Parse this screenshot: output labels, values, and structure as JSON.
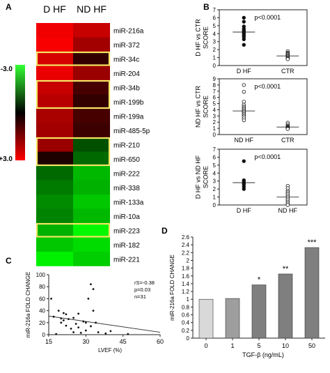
{
  "panels": {
    "A": "A",
    "B": "B",
    "C": "C",
    "D": "D"
  },
  "colors": {
    "green": "#33ff33",
    "black": "#000000",
    "red": "#ff0000",
    "highlight": "#f5e663",
    "bar_light": "#d9d9d9",
    "bar_mid": "#9e9e9e",
    "bar_dark": "#7f7f7f"
  },
  "chart_data": [
    {
      "panel": "A",
      "type": "heatmap",
      "columns": [
        "D HF",
        "ND HF"
      ],
      "rows": [
        "miR-216a",
        "miR-372",
        "miR-34c",
        "miR-204",
        "miR-34b",
        "miR-199b",
        "miR-199a",
        "miR-485-5p",
        "miR-210",
        "miR-650",
        "miR-222",
        "miR-338",
        "miR-133a",
        "miR-10a",
        "miR-223",
        "miR-182",
        "miR-221"
      ],
      "values": [
        [
          2.8,
          2.2
        ],
        [
          2.9,
          1.7
        ],
        [
          2.4,
          0.4
        ],
        [
          2.7,
          1.6
        ],
        [
          2.2,
          0.6
        ],
        [
          2.0,
          0.4
        ],
        [
          1.8,
          0.6
        ],
        [
          1.7,
          0.5
        ],
        [
          1.6,
          -0.7
        ],
        [
          0.2,
          -1.0
        ],
        [
          -1.0,
          -2.0
        ],
        [
          -1.2,
          -1.9
        ],
        [
          -1.4,
          -2.2
        ],
        [
          -1.3,
          -2.0
        ],
        [
          -1.9,
          -2.9
        ],
        [
          -2.2,
          -2.5
        ],
        [
          -2.8,
          -2.3
        ]
      ],
      "colorbar": {
        "min_label": "-3.0",
        "max_label": "+3.0",
        "min": -3.0,
        "max": 3.0
      },
      "highlighted_groups": [
        [
          "miR-34c"
        ],
        [
          "miR-34b",
          "miR-199b"
        ],
        [
          "miR-210",
          "miR-650"
        ],
        [
          "miR-223"
        ]
      ]
    },
    {
      "panel": "B1",
      "type": "scatter",
      "ylabel": "D HF vs CTR\nSCORE",
      "ylim": [
        0,
        7
      ],
      "yticks": [
        0,
        1,
        2,
        3,
        4,
        5,
        6,
        7
      ],
      "categories": [
        "D HF",
        "CTR"
      ],
      "annotation": "p<0.0001",
      "groups": [
        {
          "category": "D HF",
          "filled": true,
          "median": 4.2,
          "values": [
            6.0,
            5.5,
            4.9,
            4.6,
            4.4,
            4.3,
            4.1,
            4.0,
            3.8,
            3.6,
            3.3,
            2.6
          ]
        },
        {
          "category": "CTR",
          "filled": false,
          "median": 1.2,
          "values": [
            1.8,
            1.6,
            1.5,
            1.4,
            1.3,
            1.2,
            1.1,
            1.0,
            0.9,
            0.8
          ]
        }
      ]
    },
    {
      "panel": "B2",
      "type": "scatter",
      "ylabel": "ND HF vs CTR\nSCORE",
      "ylim": [
        0,
        9
      ],
      "yticks": [
        0,
        1,
        2,
        3,
        4,
        5,
        6,
        7,
        8,
        9
      ],
      "categories": [
        "ND HF",
        "CTR"
      ],
      "annotation": "p<0.0001",
      "groups": [
        {
          "category": "ND HF",
          "filled": false,
          "median": 3.8,
          "values": [
            8.0,
            6.9,
            5.3,
            4.8,
            4.5,
            4.3,
            4.1,
            3.9,
            3.7,
            3.5,
            3.3,
            3.1,
            2.9,
            2.6,
            2.3
          ]
        },
        {
          "category": "CTR",
          "filled": false,
          "median": 1.2,
          "values": [
            1.9,
            1.6,
            1.4,
            1.3,
            1.2,
            1.1,
            1.0,
            0.9
          ]
        }
      ]
    },
    {
      "panel": "B3",
      "type": "scatter",
      "ylabel": "D HF vs ND HF\nSCORE",
      "ylim": [
        0,
        7
      ],
      "yticks": [
        0,
        1,
        2,
        3,
        4,
        5,
        6,
        7
      ],
      "categories": [
        "D HF",
        "ND HF"
      ],
      "annotation": "p<0.0001",
      "groups": [
        {
          "category": "D HF",
          "filled": true,
          "median": 2.8,
          "values": [
            5.5,
            3.1,
            2.9,
            2.7,
            2.6,
            2.3,
            2.0
          ]
        },
        {
          "category": "ND HF",
          "filled": false,
          "median": 1.0,
          "values": [
            2.4,
            2.1,
            1.8,
            1.6,
            1.4,
            1.2,
            1.0,
            0.8,
            0.6,
            0.4,
            0.2,
            0.0
          ]
        }
      ]
    },
    {
      "panel": "C",
      "type": "scatter",
      "xlabel": "LVEF (%)",
      "ylabel": "miR-216a FOLD CHANGE",
      "xlim": [
        15,
        60
      ],
      "ylim": [
        0,
        100
      ],
      "xticks": [
        15,
        30,
        45,
        60
      ],
      "yticks": [
        0,
        20,
        40,
        60,
        80,
        100
      ],
      "stats": [
        "rS=-0.38",
        "p=0.03",
        "n=31"
      ],
      "trendline": {
        "x": [
          15,
          60
        ],
        "y": [
          31,
          4
        ]
      },
      "points": [
        [
          16,
          60
        ],
        [
          17,
          30
        ],
        [
          18,
          1
        ],
        [
          19,
          40
        ],
        [
          20,
          20
        ],
        [
          20,
          27
        ],
        [
          21,
          24
        ],
        [
          21,
          36
        ],
        [
          22,
          15
        ],
        [
          22,
          34
        ],
        [
          23,
          26
        ],
        [
          24,
          10
        ],
        [
          25,
          28
        ],
        [
          25,
          4
        ],
        [
          26,
          18
        ],
        [
          27,
          35
        ],
        [
          27,
          12
        ],
        [
          28,
          3
        ],
        [
          29,
          22
        ],
        [
          30,
          20
        ],
        [
          30,
          7
        ],
        [
          31,
          60
        ],
        [
          32,
          84
        ],
        [
          32,
          14
        ],
        [
          33,
          76
        ],
        [
          33,
          40
        ],
        [
          34,
          20
        ],
        [
          35,
          4
        ],
        [
          38,
          2
        ],
        [
          40,
          6
        ],
        [
          47,
          1
        ]
      ]
    },
    {
      "panel": "D",
      "type": "bar",
      "xlabel": "TGF-β (ng/mL)",
      "ylabel": "miR-216a FOLD CHANGE",
      "ylim": [
        0,
        2.6
      ],
      "yticks": [
        0,
        0.2,
        0.4,
        0.6,
        0.8,
        1,
        1.2,
        1.4,
        1.6,
        1.8,
        2,
        2.2,
        2.4,
        2.6
      ],
      "ytick_labels": [
        "0",
        "0.2",
        "0.4",
        "0.6",
        "0.8",
        "1",
        "1.2",
        "1.4",
        "1.6",
        "1.8",
        "2",
        "2.2",
        "2.4",
        "2.6"
      ],
      "categories": [
        "0",
        "1",
        "5",
        "10",
        "50"
      ],
      "values": [
        1.0,
        1.02,
        1.37,
        1.65,
        2.33
      ],
      "significance": [
        "",
        "",
        "*",
        "**",
        "***"
      ]
    }
  ]
}
